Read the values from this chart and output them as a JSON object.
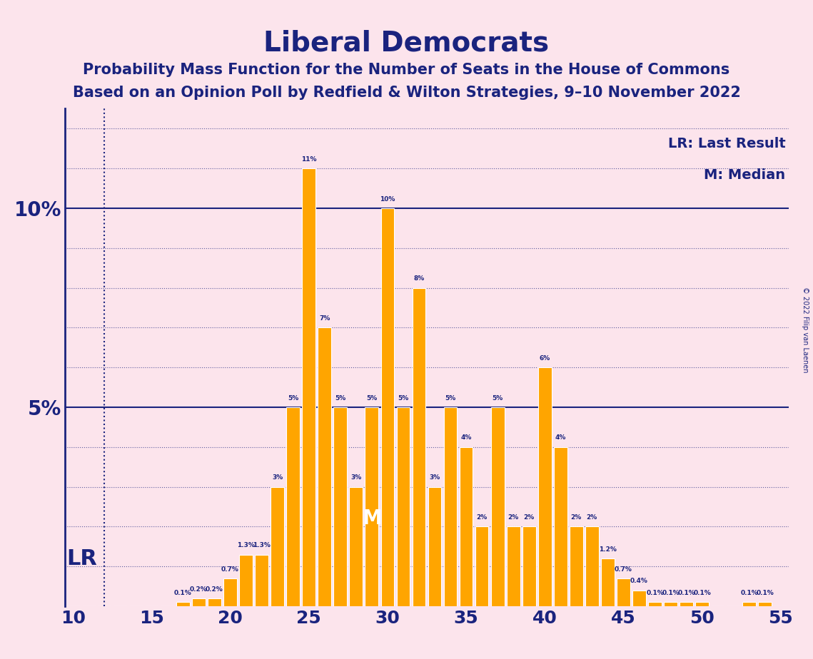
{
  "title": "Liberal Democrats",
  "subtitle1": "Probability Mass Function for the Number of Seats in the House of Commons",
  "subtitle2": "Based on an Opinion Poll by Redfield & Wilton Strategies, 9–10 November 2022",
  "copyright": "© 2022 Filip van Laenen",
  "legend_lr": "LR: Last Result",
  "legend_m": "M: Median",
  "lr_seat": 12,
  "median_seat": 29,
  "background_color": "#fce4ec",
  "bar_color": "#FFA500",
  "bar_edge_color": "#FFA500",
  "title_color": "#1a237e",
  "axis_color": "#1a237e",
  "label_color": "#1a237e",
  "lr_color": "#1a237e",
  "median_color": "#ffffff",
  "x_min": 9.5,
  "x_max": 55.5,
  "y_min": 0,
  "y_max": 12.5,
  "seats": [
    10,
    11,
    12,
    13,
    14,
    15,
    16,
    17,
    18,
    19,
    20,
    21,
    22,
    23,
    24,
    25,
    26,
    27,
    28,
    29,
    30,
    31,
    32,
    33,
    34,
    35,
    36,
    37,
    38,
    39,
    40,
    41,
    42,
    43,
    44,
    45,
    46,
    47,
    48,
    49,
    50,
    51,
    52,
    53,
    54,
    55
  ],
  "values": [
    0,
    0,
    0,
    0,
    0,
    0,
    0,
    0.1,
    0.2,
    0.2,
    0.7,
    1.3,
    1.3,
    3,
    5,
    11,
    7,
    5,
    3,
    5,
    10,
    5,
    8,
    3,
    5,
    4,
    2,
    5,
    2,
    2,
    6,
    4,
    2,
    2,
    1.2,
    0.7,
    0.4,
    0.1,
    0.1,
    0.1,
    0.1,
    0,
    0,
    0.1,
    0.1,
    0
  ],
  "bar_labels": [
    "0%",
    "0%",
    "0%",
    "0%",
    "0%",
    "0%",
    "0%",
    "0.1%",
    "0.2%",
    "0.2%",
    "0.7%",
    "1.3%",
    "1.3%",
    "3%",
    "5%",
    "11%",
    "7%",
    "5%",
    "3%",
    "5%",
    "10%",
    "5%",
    "8%",
    "3%",
    "5%",
    "4%",
    "2%",
    "5%",
    "2%",
    "2%",
    "6%",
    "4%",
    "2%",
    "2%",
    "1.2%",
    "0.7%",
    "0.4%",
    "0.1%",
    "0.1%",
    "0.1%",
    "0.1%",
    "0%",
    "0%",
    "0.1%",
    "0.1%",
    "0%"
  ]
}
